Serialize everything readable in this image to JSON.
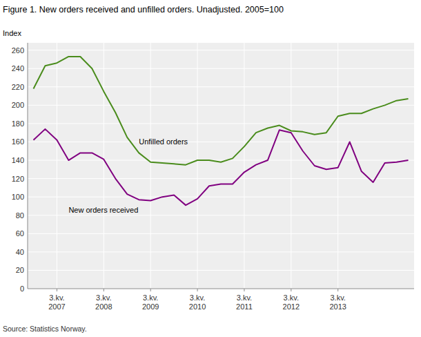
{
  "chart_data": {
    "type": "line",
    "title": "Figure 1. New orders received and unfilled orders. Unadjusted. 2005=100",
    "y_label": "Index",
    "source": "Source: Statistics Norway.",
    "categories": [
      null,
      null,
      "3.kv.\n2007",
      null,
      null,
      null,
      "3.kv.\n2008",
      null,
      null,
      null,
      "3.kv.\n2009",
      null,
      null,
      null,
      "3.kv.\n2010",
      null,
      null,
      null,
      "3.kv.\n2011",
      null,
      null,
      null,
      "3.kv.\n2012",
      null,
      null,
      null,
      "3.kv.\n2013",
      null,
      null,
      null,
      null,
      null,
      null
    ],
    "series": [
      {
        "name": "Unfilled orders",
        "color": "#4a8c1c",
        "values": [
          218,
          243,
          246,
          253,
          253,
          240,
          215,
          192,
          165,
          148,
          138,
          137,
          136,
          135,
          140,
          140,
          138,
          142,
          155,
          170,
          175,
          178,
          172,
          171,
          168,
          170,
          188,
          191,
          191,
          196,
          200,
          205,
          207
        ]
      },
      {
        "name": "New orders received",
        "color": "#800080",
        "values": [
          162,
          174,
          162,
          140,
          148,
          148,
          141,
          120,
          103,
          97,
          96,
          100,
          102,
          91,
          98,
          112,
          114,
          114,
          127,
          135,
          140,
          173,
          170,
          150,
          134,
          130,
          132,
          160,
          128,
          116,
          137,
          138,
          140
        ]
      }
    ],
    "ylim": [
      0,
      268
    ],
    "yticks": [
      0,
      20,
      40,
      60,
      80,
      100,
      120,
      140,
      160,
      180,
      200,
      220,
      240,
      260
    ],
    "grid": true
  }
}
